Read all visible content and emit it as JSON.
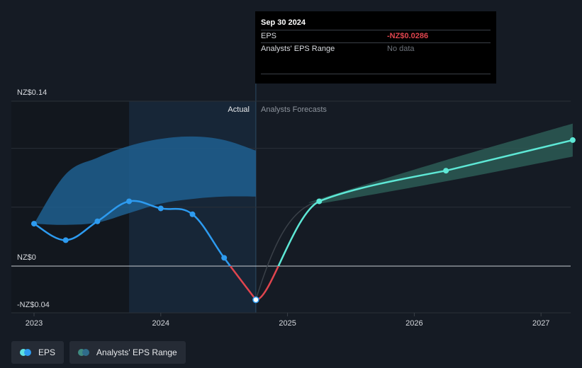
{
  "chart_data": {
    "type": "line",
    "title": "EPS",
    "x_ticks": [
      "2023",
      "2024",
      "2025",
      "2026",
      "2027"
    ],
    "y_ticks": [
      {
        "label": "NZ$0.14",
        "value": 0.14
      },
      {
        "label": "NZ$0",
        "value": 0
      },
      {
        "label": "-NZ$0.04",
        "value": -0.04
      }
    ],
    "ylim": [
      -0.04,
      0.14
    ],
    "xlim": [
      2023.0,
      2027.25
    ],
    "divider_label_actual": "Actual",
    "divider_label_forecast": "Analysts Forecasts",
    "series": [
      {
        "name": "EPS",
        "kind": "actual",
        "x": [
          2023.0,
          2023.25,
          2023.5,
          2023.75,
          2024.0,
          2024.25,
          2024.5,
          2024.75
        ],
        "values": [
          0.036,
          0.022,
          0.038,
          0.055,
          0.049,
          0.044,
          0.007,
          -0.0286
        ]
      },
      {
        "name": "EPS",
        "kind": "forecast",
        "x": [
          2024.75,
          2025.25,
          2026.25,
          2027.25
        ],
        "values": [
          -0.0286,
          0.055,
          0.081,
          0.107
        ]
      }
    ],
    "actual_range_band": {
      "x": [
        2023.0,
        2023.25,
        2023.5,
        2023.75,
        2024.0,
        2024.25,
        2024.5,
        2024.75
      ],
      "upper": [
        0.036,
        0.078,
        0.092,
        0.102,
        0.108,
        0.11,
        0.107,
        0.098
      ],
      "lower": [
        0.036,
        0.035,
        0.037,
        0.045,
        0.053,
        0.057,
        0.059,
        0.059
      ]
    },
    "forecast_range_band": {
      "x": [
        2025.25,
        2026.25,
        2027.25
      ],
      "upper": [
        0.057,
        0.09,
        0.121
      ],
      "lower": [
        0.053,
        0.072,
        0.093
      ]
    },
    "tooltip": {
      "date": "Sep 30 2024",
      "rows": [
        {
          "label": "EPS",
          "value": "-NZ$0.0286"
        },
        {
          "label": "Analysts' EPS Range",
          "value": "No data"
        }
      ]
    },
    "legend": [
      {
        "label": "EPS",
        "color": "#2d9bf0",
        "color2": "#5ee0e0"
      },
      {
        "label": "Analysts' EPS Range",
        "color": "#2f6b8a",
        "color2": "#3f8a80"
      }
    ]
  },
  "colors": {
    "eps_actual": "#2d9bf0",
    "eps_negative": "#e0454e",
    "eps_forecast": "#5ee8d6",
    "band_actual": "#1f5f8f",
    "band_forecast": "#2d5f58"
  }
}
